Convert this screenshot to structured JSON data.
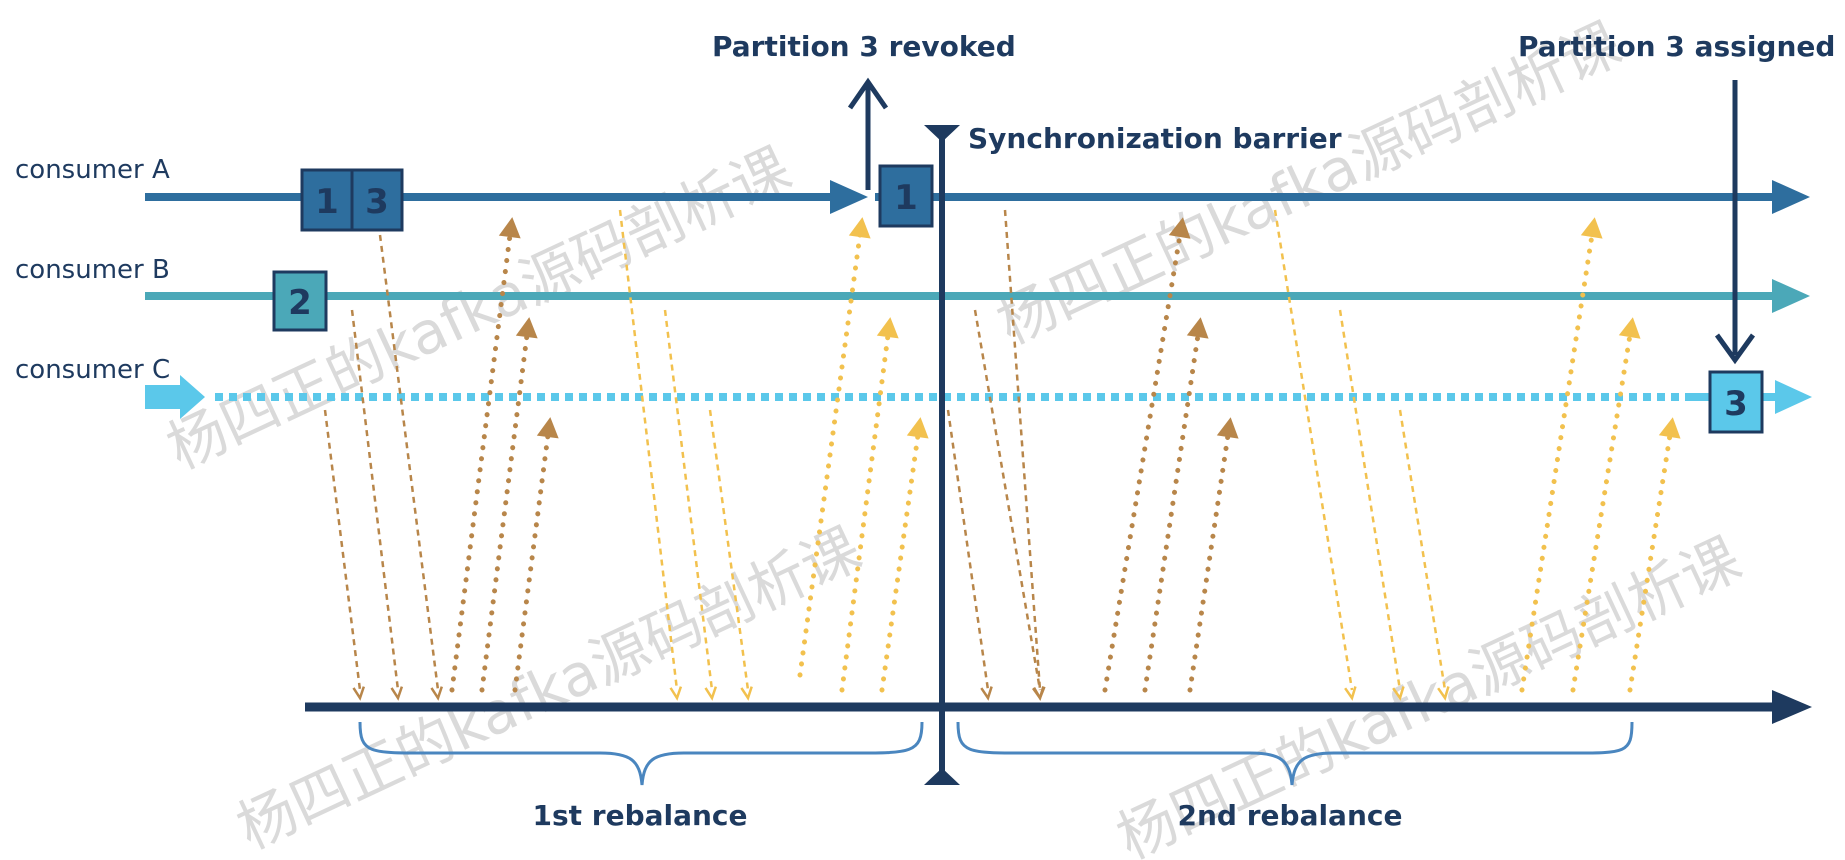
{
  "labels": {
    "consumer_a": "consumer A",
    "consumer_b": "consumer B",
    "consumer_c": "consumer C",
    "partition_revoked": "Partition 3 revoked",
    "partition_assigned": "Partition 3 assigned",
    "sync_barrier": "Synchronization barrier",
    "rebalance_1": "1st rebalance",
    "rebalance_2": "2nd rebalance"
  },
  "partitions": {
    "a_first": "1",
    "a_second": "3",
    "b_first": "2",
    "a_after": "1",
    "c_after": "3"
  },
  "watermark": "杨四正的kafka源码剖析课",
  "colors": {
    "consumer_a": "#2e6e9e",
    "consumer_b": "#4ba8b8",
    "consumer_c": "#5bc8ea",
    "timeline": "#1e3a5f",
    "brown": "#b8864a",
    "yellow": "#f2c14e",
    "brace": "#4a86bf"
  }
}
